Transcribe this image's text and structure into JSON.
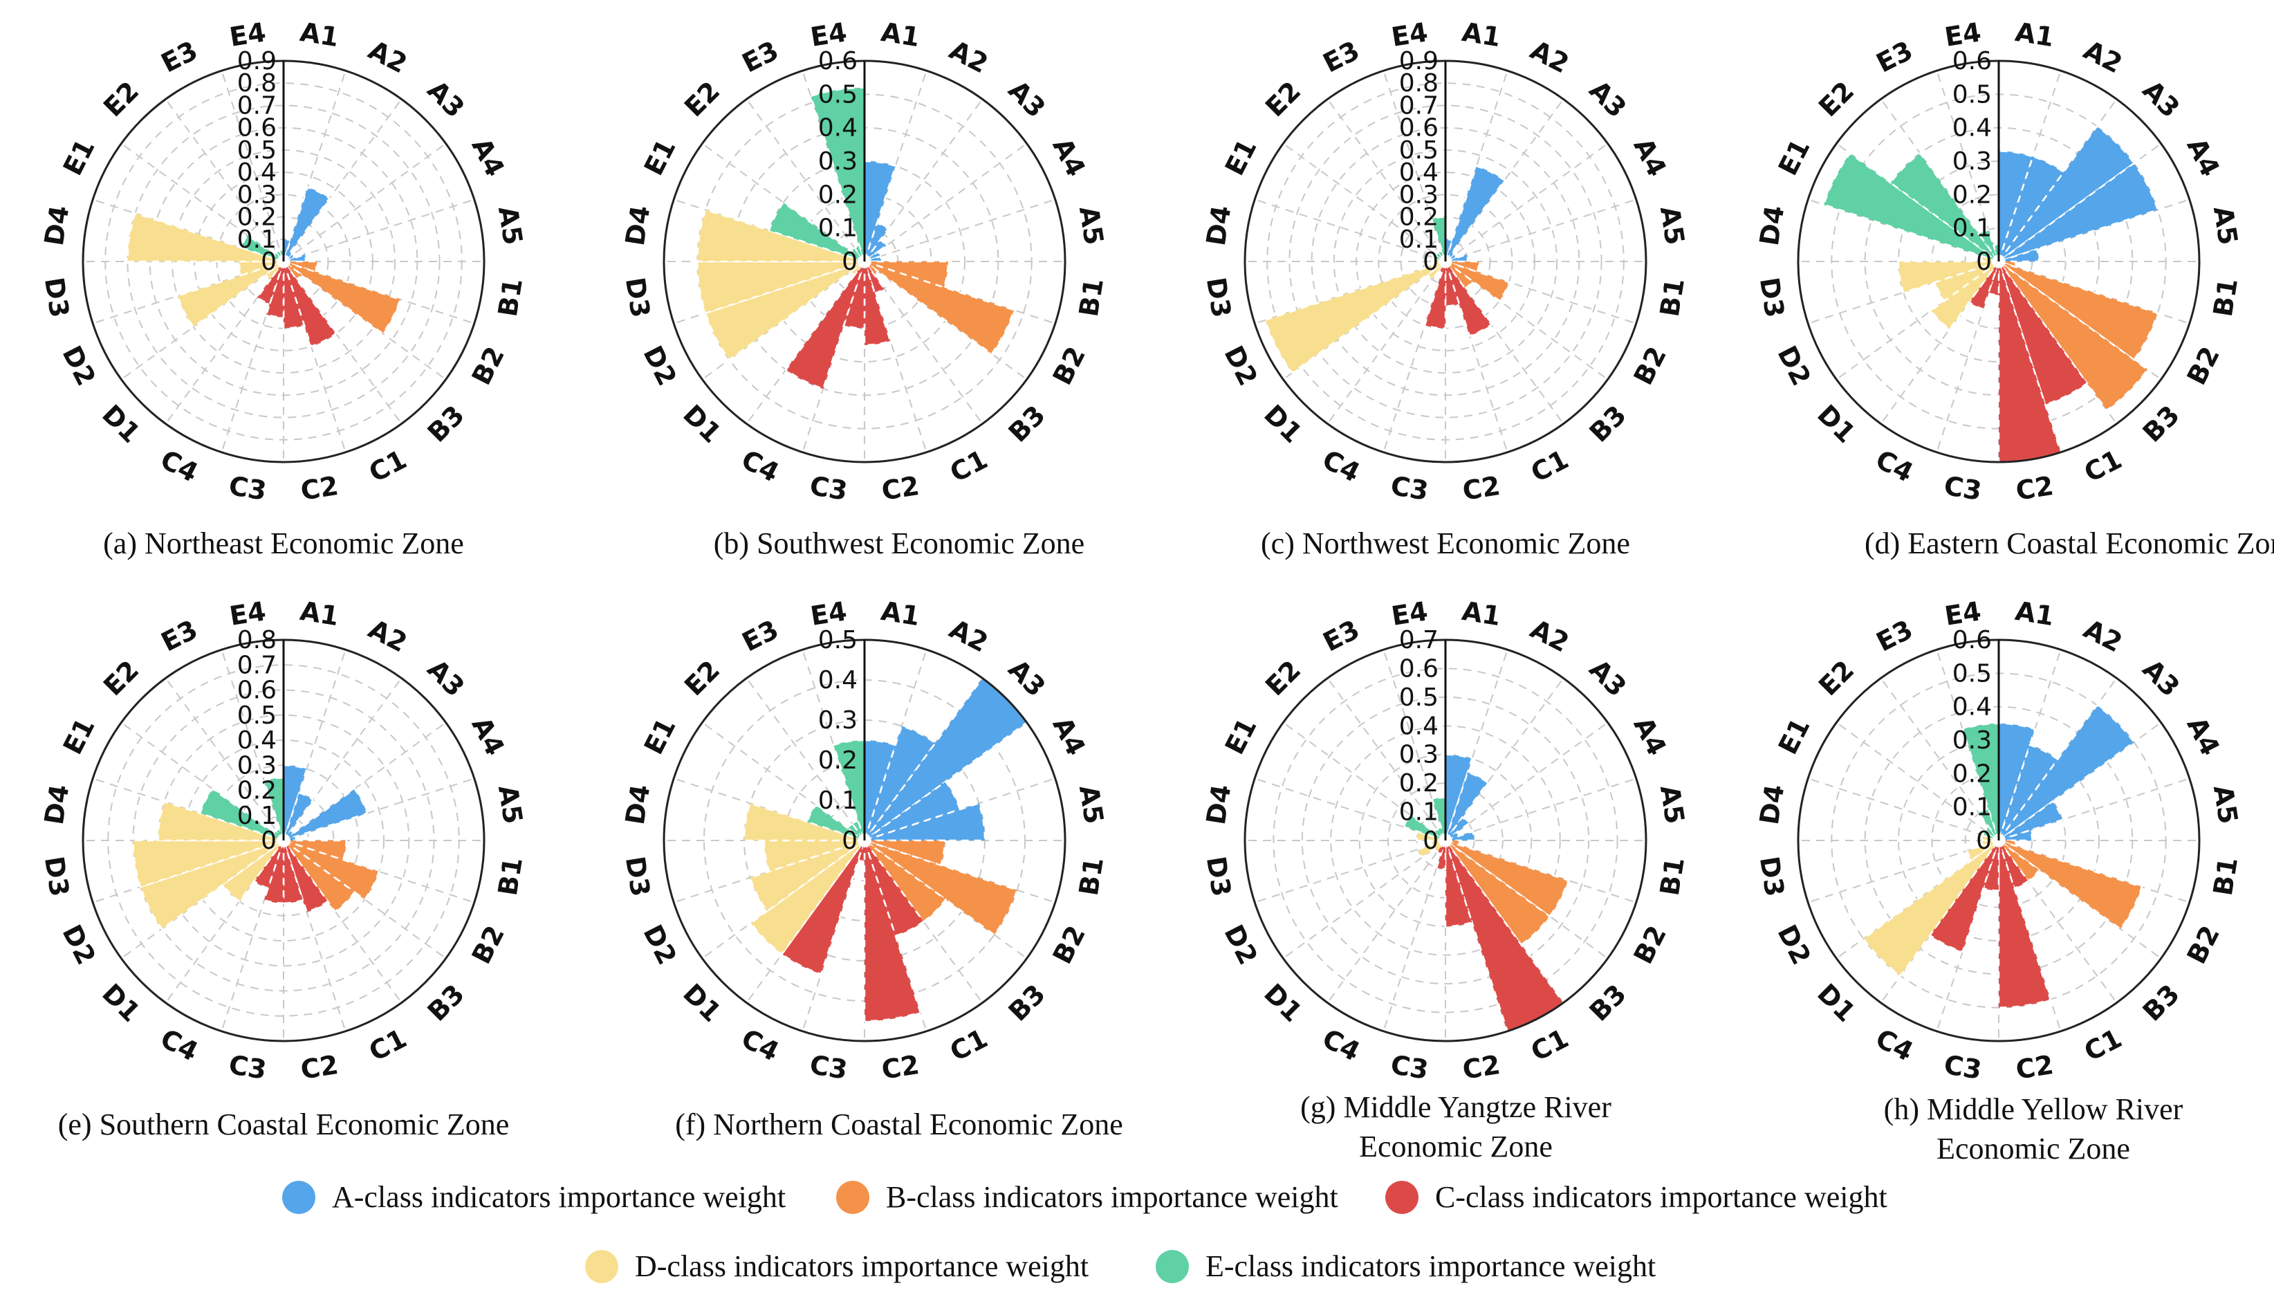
{
  "categories": [
    "A1",
    "A2",
    "A3",
    "A4",
    "A5",
    "B1",
    "B2",
    "B3",
    "C1",
    "C2",
    "C3",
    "C4",
    "D1",
    "D2",
    "D3",
    "D4",
    "E1",
    "E2",
    "E3",
    "E4"
  ],
  "colors": {
    "A": "#55a5ea",
    "B": "#f5924a",
    "C": "#dc4a48",
    "D": "#f8df8f",
    "E": "#5fd1a4"
  },
  "legend": [
    {
      "key": "A",
      "label": "A-class indicators importance weight"
    },
    {
      "key": "B",
      "label": "B-class indicators importance weight"
    },
    {
      "key": "C",
      "label": "C-class indicators importance weight"
    },
    {
      "key": "D",
      "label": "D-class indicators importance weight"
    },
    {
      "key": "E",
      "label": "E-class indicators importance weight"
    }
  ],
  "chart_data": [
    {
      "type": "polar-bar",
      "caption": [
        "(a) Northeast Economic Zone"
      ],
      "rlim": [
        0,
        0.9
      ],
      "rticks": [
        "0",
        "0.1",
        "0.2",
        "0.3",
        "0.4",
        "0.5",
        "0.6",
        "0.7",
        "0.8",
        "0.9"
      ],
      "values": [
        0.1,
        0.35,
        0.05,
        0.05,
        0.1,
        0.15,
        0.55,
        0.1,
        0.4,
        0.3,
        0.25,
        0.2,
        0.1,
        0.5,
        0.2,
        0.7,
        0.2,
        0.05,
        0.05,
        0.05
      ]
    },
    {
      "type": "polar-bar",
      "caption": [
        "(b) Southwest Economic Zone"
      ],
      "rlim": [
        0,
        0.6
      ],
      "rticks": [
        "0",
        "0.1",
        "0.2",
        "0.3",
        "0.4",
        "0.5",
        "0.6"
      ],
      "values": [
        0.3,
        0.12,
        0.08,
        0.05,
        0.05,
        0.25,
        0.47,
        0.05,
        0.1,
        0.25,
        0.2,
        0.4,
        0.05,
        0.5,
        0.5,
        0.5,
        0.3,
        0.05,
        0.05,
        0.52
      ]
    },
    {
      "type": "polar-bar",
      "caption": [
        "(c) Northwest Economic Zone"
      ],
      "rlim": [
        0,
        0.9
      ],
      "rticks": [
        "0",
        "0.1",
        "0.2",
        "0.3",
        "0.4",
        "0.5",
        "0.6",
        "0.7",
        "0.8",
        "0.9"
      ],
      "values": [
        0.1,
        0.45,
        0.05,
        0.05,
        0.1,
        0.15,
        0.3,
        0.15,
        0.35,
        0.2,
        0.3,
        0.05,
        0.1,
        0.85,
        0.05,
        0.05,
        0.05,
        0.05,
        0.05,
        0.2
      ]
    },
    {
      "type": "polar-bar",
      "caption": [
        "(d) Eastern Coastal Economic Zone"
      ],
      "rlim": [
        0,
        0.6
      ],
      "rticks": [
        "0",
        "0.1",
        "0.2",
        "0.3",
        "0.4",
        "0.5",
        "0.6"
      ],
      "values": [
        0.33,
        0.33,
        0.5,
        0.5,
        0.12,
        0.05,
        0.5,
        0.55,
        0.45,
        0.6,
        0.1,
        0.15,
        0.25,
        0.2,
        0.3,
        0.05,
        0.55,
        0.4,
        0.1,
        0.05
      ]
    },
    {
      "type": "polar-bar",
      "caption": [
        "(e) Southern Coastal Economic Zone"
      ],
      "rlim": [
        0,
        0.8
      ],
      "rticks": [
        "0",
        "0.1",
        "0.2",
        "0.3",
        "0.4",
        "0.5",
        "0.6",
        "0.7",
        "0.8"
      ],
      "values": [
        0.3,
        0.2,
        0.05,
        0.35,
        0.05,
        0.25,
        0.4,
        0.35,
        0.3,
        0.25,
        0.25,
        0.2,
        0.3,
        0.6,
        0.6,
        0.5,
        0.35,
        0.05,
        0.05,
        0.25
      ]
    },
    {
      "type": "polar-bar",
      "caption": [
        "(f) Northern Coastal Economic Zone"
      ],
      "rlim": [
        0,
        0.5
      ],
      "rticks": [
        "0",
        "0.1",
        "0.2",
        "0.3",
        "0.4",
        "0.5"
      ],
      "values": [
        0.25,
        0.3,
        0.5,
        0.25,
        0.3,
        0.2,
        0.4,
        0.25,
        0.25,
        0.45,
        0.05,
        0.35,
        0.35,
        0.3,
        0.25,
        0.3,
        0.15,
        0.05,
        0.05,
        0.25
      ]
    },
    {
      "type": "polar-bar",
      "caption": [
        "(g) Middle Yangtze River",
        "Economic Zone"
      ],
      "rlim": [
        0,
        0.7
      ],
      "rticks": [
        "0",
        "0.1",
        "0.2",
        "0.3",
        "0.4",
        "0.5",
        "0.6",
        "0.7"
      ],
      "values": [
        0.3,
        0.25,
        0.1,
        0.05,
        0.1,
        0.05,
        0.45,
        0.45,
        0.7,
        0.3,
        0.1,
        0.05,
        0.05,
        0.1,
        0.05,
        0.1,
        0.15,
        0.05,
        0.05,
        0.15
      ]
    },
    {
      "type": "polar-bar",
      "caption": [
        "(h) Middle Yellow River",
        "Economic Zone"
      ],
      "rlim": [
        0,
        0.6
      ],
      "rticks": [
        "0",
        "0.1",
        "0.2",
        "0.3",
        "0.4",
        "0.5",
        "0.6"
      ],
      "values": [
        0.35,
        0.3,
        0.5,
        0.2,
        0.1,
        0.05,
        0.45,
        0.15,
        0.15,
        0.5,
        0.15,
        0.35,
        0.5,
        0.1,
        0.05,
        0.05,
        0.05,
        0.05,
        0.1,
        0.35
      ]
    }
  ]
}
